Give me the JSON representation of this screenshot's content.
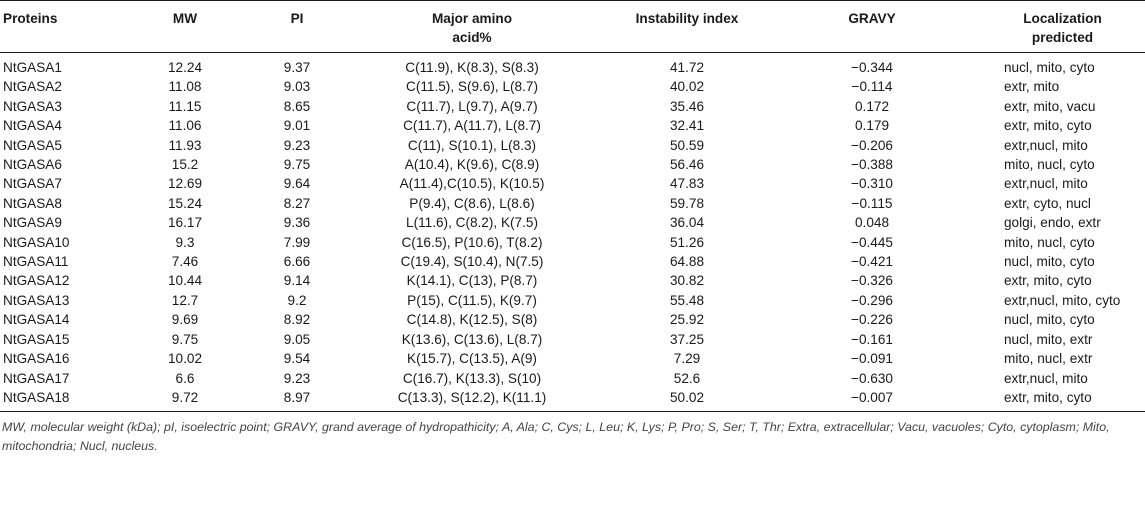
{
  "headers": {
    "proteins": "Proteins",
    "mw": "MW",
    "pi": "PI",
    "major_line1": "Major amino",
    "major_line2": "acid%",
    "instability": "Instability index",
    "gravy": "GRAVY",
    "loc_line1": "Localization",
    "loc_line2": "predicted"
  },
  "rows": [
    [
      "NtGASA1",
      "12.24",
      "9.37",
      "C(11.9), K(8.3), S(8.3)",
      "41.72",
      "−0.344",
      "nucl, mito, cyto"
    ],
    [
      "NtGASA2",
      "11.08",
      "9.03",
      "C(11.5), S(9.6), L(8.7)",
      "40.02",
      "−0.114",
      "extr, mito"
    ],
    [
      "NtGASA3",
      "11.15",
      "8.65",
      "C(11.7), L(9.7), A(9.7)",
      "35.46",
      "0.172",
      "extr, mito, vacu"
    ],
    [
      "NtGASA4",
      "11.06",
      "9.01",
      "C(11.7), A(11.7), L(8.7)",
      "32.41",
      "0.179",
      "extr, mito, cyto"
    ],
    [
      "NtGASA5",
      "11.93",
      "9.23",
      "C(11), S(10.1), L(8.3)",
      "50.59",
      "−0.206",
      "extr,nucl, mito"
    ],
    [
      "NtGASA6",
      "15.2",
      "9.75",
      "A(10.4), K(9.6), C(8.9)",
      "56.46",
      "−0.388",
      "mito, nucl, cyto"
    ],
    [
      "NtGASA7",
      "12.69",
      "9.64",
      "A(11.4),C(10.5), K(10.5)",
      "47.83",
      "−0.310",
      "extr,nucl, mito"
    ],
    [
      "NtGASA8",
      "15.24",
      "8.27",
      "P(9.4), C(8.6), L(8.6)",
      "59.78",
      "−0.115",
      "extr, cyto, nucl"
    ],
    [
      "NtGASA9",
      "16.17",
      "9.36",
      "L(11.6), C(8.2), K(7.5)",
      "36.04",
      "0.048",
      "golgi, endo, extr"
    ],
    [
      "NtGASA10",
      "9.3",
      "7.99",
      "C(16.5), P(10.6), T(8.2)",
      "51.26",
      "−0.445",
      "mito, nucl, cyto"
    ],
    [
      "NtGASA11",
      "7.46",
      "6.66",
      "C(19.4), S(10.4), N(7.5)",
      "64.88",
      "−0.421",
      "nucl, mito, cyto"
    ],
    [
      "NtGASA12",
      "10.44",
      "9.14",
      "K(14.1), C(13), P(8.7)",
      "30.82",
      "−0.326",
      "extr, mito, cyto"
    ],
    [
      "NtGASA13",
      "12.7",
      "9.2",
      "P(15), C(11.5), K(9.7)",
      "55.48",
      "−0.296",
      "extr,nucl, mito, cyto"
    ],
    [
      "NtGASA14",
      "9.69",
      "8.92",
      "C(14.8), K(12.5), S(8)",
      "25.92",
      "−0.226",
      "nucl, mito, cyto"
    ],
    [
      "NtGASA15",
      "9.75",
      "9.05",
      "K(13.6), C(13.6), L(8.7)",
      "37.25",
      "−0.161",
      "nucl, mito, extr"
    ],
    [
      "NtGASA16",
      "10.02",
      "9.54",
      "K(15.7), C(13.5), A(9)",
      "7.29",
      "−0.091",
      "mito, nucl, extr"
    ],
    [
      "NtGASA17",
      "6.6",
      "9.23",
      "C(16.7), K(13.3), S(10)",
      "52.6",
      "−0.630",
      "extr,nucl, mito"
    ],
    [
      "NtGASA18",
      "9.72",
      "8.97",
      "C(13.3), S(12.2), K(11.1)",
      "50.02",
      "−0.007",
      "extr, mito, cyto"
    ]
  ],
  "footnote": "MW, molecular weight (kDa); pI, isoelectric point; GRAVY, grand average of hydropathicity; A, Ala; C, Cys; L, Leu; K, Lys; P, Pro; S, Ser; T, Thr; Extra, extracellular; Vacu, vacuoles; Cyto, cytoplasm; Mito, mitochondria; Nucl, nucleus."
}
